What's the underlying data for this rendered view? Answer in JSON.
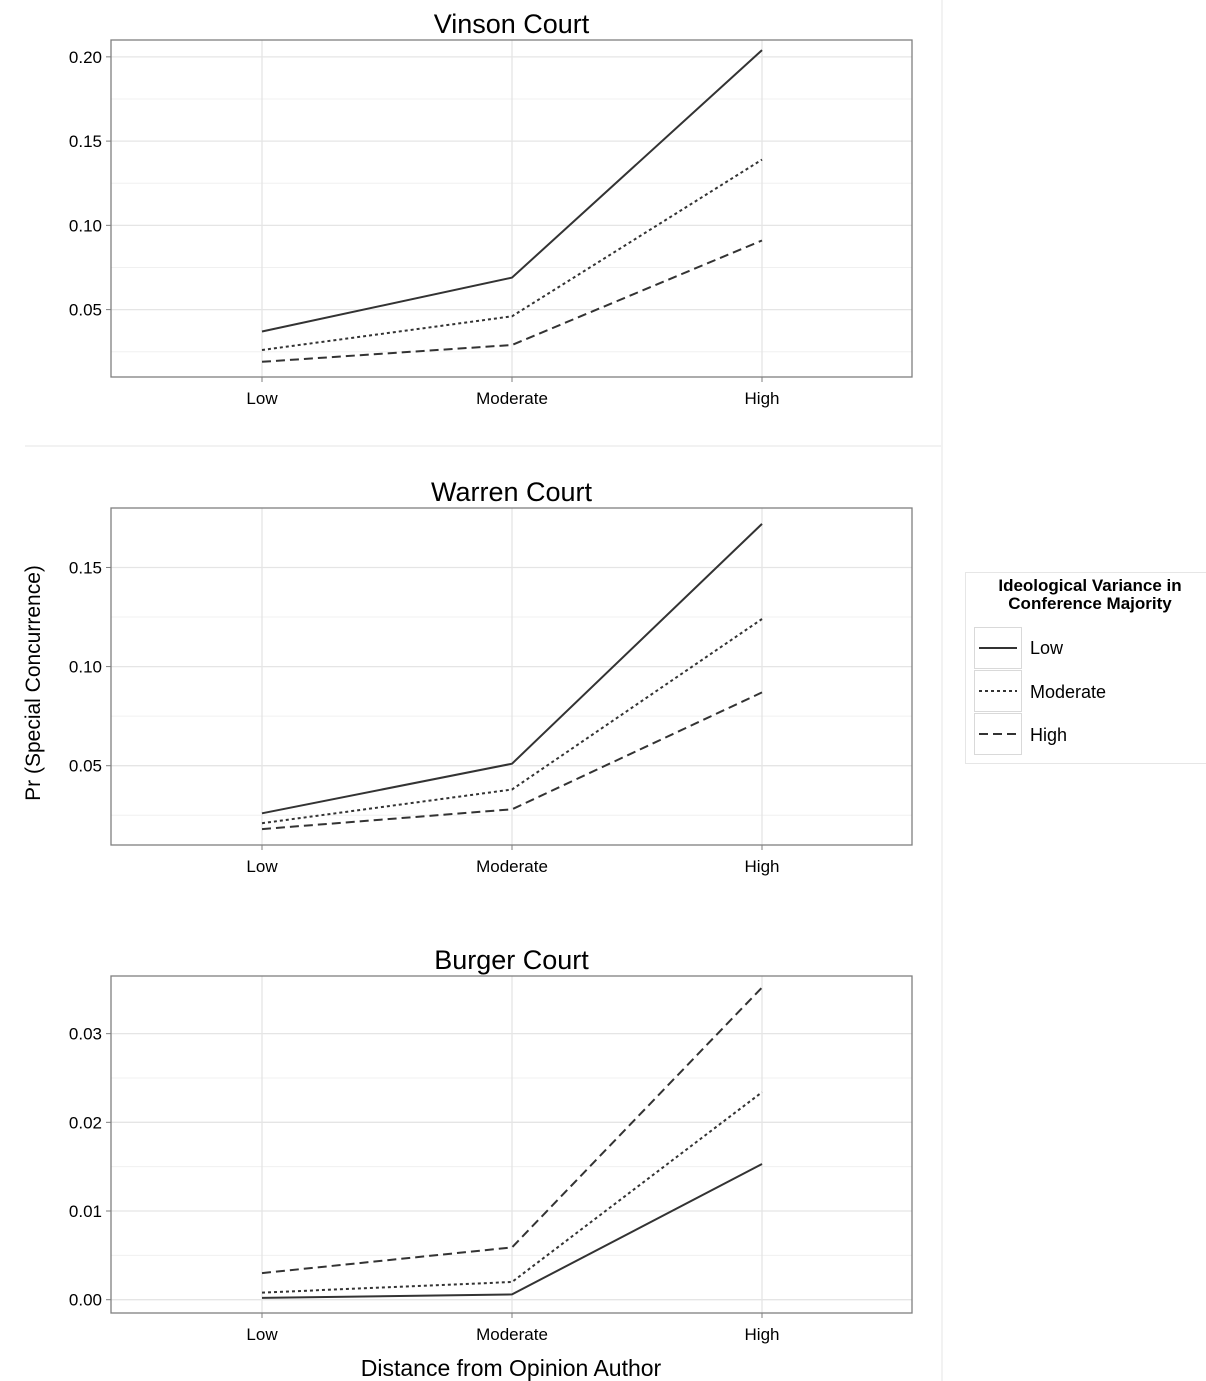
{
  "chart_data": [
    {
      "type": "line",
      "title": "Vinson Court",
      "categories": [
        "Low",
        "Moderate",
        "High"
      ],
      "ylim": [
        0.01,
        0.21
      ],
      "yticks": [
        "0.05",
        "0.10",
        "0.15",
        "0.20"
      ],
      "ytick_values": [
        0.05,
        0.1,
        0.15,
        0.2
      ],
      "series": [
        {
          "name": "Low",
          "values": [
            0.037,
            0.069,
            0.204
          ]
        },
        {
          "name": "Moderate",
          "values": [
            0.026,
            0.046,
            0.139
          ]
        },
        {
          "name": "High",
          "values": [
            0.019,
            0.029,
            0.091
          ]
        }
      ]
    },
    {
      "type": "line",
      "title": "Warren Court",
      "categories": [
        "Low",
        "Moderate",
        "High"
      ],
      "ylim": [
        0.01,
        0.18
      ],
      "yticks": [
        "0.05",
        "0.10",
        "0.15"
      ],
      "ytick_values": [
        0.05,
        0.1,
        0.15
      ],
      "series": [
        {
          "name": "Low",
          "values": [
            0.026,
            0.051,
            0.172
          ]
        },
        {
          "name": "Moderate",
          "values": [
            0.021,
            0.038,
            0.124
          ]
        },
        {
          "name": "High",
          "values": [
            0.018,
            0.028,
            0.087
          ]
        }
      ]
    },
    {
      "type": "line",
      "title": "Burger Court",
      "categories": [
        "Low",
        "Moderate",
        "High"
      ],
      "ylim": [
        -0.0015,
        0.0365
      ],
      "yticks": [
        "0.00",
        "0.01",
        "0.02",
        "0.03"
      ],
      "ytick_values": [
        0.0,
        0.01,
        0.02,
        0.03
      ],
      "series": [
        {
          "name": "Low",
          "values": [
            0.0002,
            0.0006,
            0.0153
          ]
        },
        {
          "name": "Moderate",
          "values": [
            0.0008,
            0.002,
            0.0234
          ]
        },
        {
          "name": "High",
          "values": [
            0.003,
            0.0059,
            0.0352
          ]
        }
      ]
    }
  ],
  "ylabel": "Pr (Special Concurrence)",
  "xlabel": "Distance from Opinion Author",
  "legend": {
    "title": "Ideological Variance in\nConference Majority",
    "placement": "right",
    "items": [
      {
        "label": "Low",
        "dash": "solid"
      },
      {
        "label": "Moderate",
        "dash": "dotted"
      },
      {
        "label": "High",
        "dash": "dashed"
      }
    ]
  },
  "colors": {
    "line": "#333333",
    "grid": "#e5e5e5",
    "border": "#7f7f7f",
    "text": "#000000"
  }
}
